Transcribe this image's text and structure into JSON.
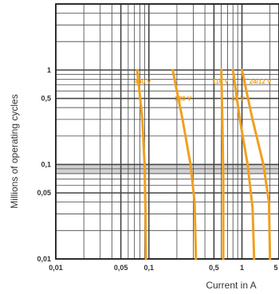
{
  "chart_data": {
    "type": "line",
    "xlabel": "Current in A",
    "ylabel": "Millions of operating cycles",
    "x_scale": "log",
    "y_scale": "log",
    "xlim": [
      0.01,
      2.5
    ],
    "ylim": [
      0.01,
      5
    ],
    "grid": true,
    "x_ticks": [
      "0,01",
      "0,05",
      "0,1",
      "0,5",
      "1",
      "5"
    ],
    "x_tick_values": [
      0.01,
      0.05,
      0.1,
      0.5,
      1,
      5
    ],
    "y_ticks": [
      "1",
      "0,5",
      "0,1",
      "0,05",
      "0,01"
    ],
    "y_tick_values": [
      1,
      0.5,
      0.1,
      0.05,
      0.01
    ],
    "shaded_band": [
      0.08,
      0.1
    ],
    "series": [
      {
        "name": "440 V",
        "points": [
          [
            0.075,
            1.0
          ],
          [
            0.085,
            0.3
          ],
          [
            0.09,
            0.1
          ],
          [
            0.092,
            0.03
          ],
          [
            0.093,
            0.01
          ]
        ]
      },
      {
        "name": "220 V",
        "points": [
          [
            0.18,
            1.0
          ],
          [
            0.23,
            0.3
          ],
          [
            0.28,
            0.1
          ],
          [
            0.31,
            0.04
          ],
          [
            0.32,
            0.01
          ]
        ]
      },
      {
        "name": "110 V",
        "points": [
          [
            0.6,
            1.0
          ],
          [
            0.62,
            0.2
          ],
          [
            0.63,
            0.07
          ],
          [
            0.63,
            0.01
          ]
        ]
      },
      {
        "name": "48 V",
        "points": [
          [
            0.8,
            1.0
          ],
          [
            0.95,
            0.3
          ],
          [
            1.15,
            0.1
          ],
          [
            1.3,
            0.035
          ],
          [
            1.35,
            0.01
          ]
        ]
      },
      {
        "name": "24/12 V",
        "points": [
          [
            1.0,
            1.0
          ],
          [
            1.3,
            0.3
          ],
          [
            1.7,
            0.1
          ],
          [
            1.95,
            0.04
          ],
          [
            2.0,
            0.01
          ]
        ]
      }
    ],
    "colors": {
      "curve": "#f0a020",
      "grid": "#444444",
      "band": "#bdbdbd",
      "label": "#f0a020"
    }
  }
}
